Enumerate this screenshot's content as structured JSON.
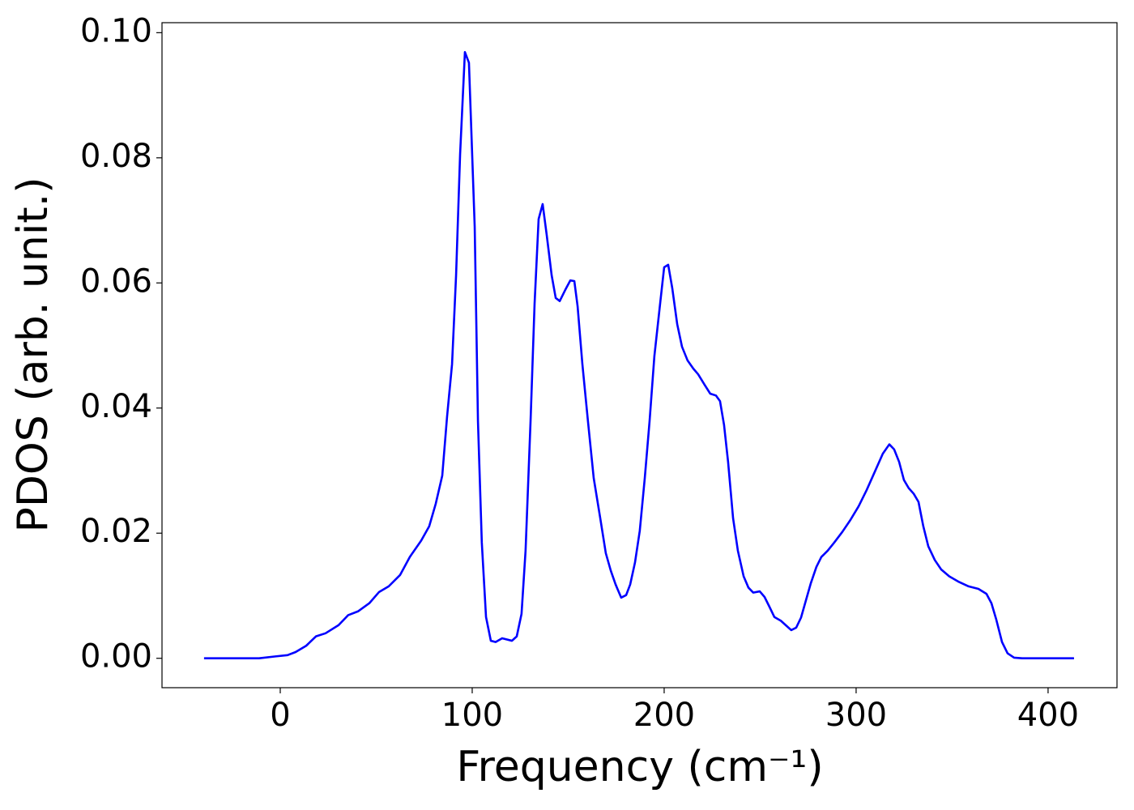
{
  "chart_data": {
    "type": "line",
    "xlabel": "Frequency (cm⁻¹)",
    "ylabel": "PDOS (arb. unit.)",
    "xlim": [
      -61.6,
      435.9
    ],
    "ylim": [
      -0.0047,
      0.1016
    ],
    "xticks": [
      0,
      100,
      200,
      300,
      400
    ],
    "yticks": [
      {
        "value": 0,
        "label": "0.00"
      },
      {
        "value": 0.02,
        "label": "0.02"
      },
      {
        "value": 0.04,
        "label": "0.04"
      },
      {
        "value": 0.06,
        "label": "0.06"
      },
      {
        "value": 0.08,
        "label": "0.08"
      },
      {
        "value": 0.1,
        "label": "0.10"
      }
    ],
    "grid": false,
    "series": [
      {
        "color": "#0000ff",
        "x": [
          -39.7,
          -11,
          -2.5,
          3.8,
          8,
          13.5,
          18.6,
          23.6,
          30.4,
          35.4,
          40.5,
          46.4,
          51.5,
          56.5,
          62.4,
          67.5,
          73.4,
          77.6,
          81,
          84.4,
          86.9,
          89.5,
          91.6,
          93.7,
          96.2,
          98.3,
          101.3,
          103,
          105,
          107.2,
          109.7,
          112.2,
          115.6,
          120.7,
          123.2,
          125.7,
          127.8,
          130.4,
          132.5,
          134.6,
          136.7,
          138.8,
          141.4,
          143.5,
          145.6,
          148.5,
          151.1,
          153.2,
          154.9,
          157.4,
          160.3,
          163.3,
          166.7,
          169.6,
          172.2,
          174.7,
          177.6,
          180.2,
          182.3,
          184.8,
          187.3,
          189.9,
          192.4,
          194.9,
          197.9,
          200,
          202.1,
          204.2,
          206.8,
          209.3,
          212.2,
          215.2,
          217.7,
          221.1,
          224,
          227,
          229.1,
          231.2,
          233.3,
          235.9,
          238.4,
          241.4,
          243.9,
          246.4,
          249.8,
          252.3,
          254.9,
          257.4,
          260.8,
          263.3,
          266.2,
          268.8,
          271.3,
          273.8,
          276.4,
          279.3,
          281.9,
          285.2,
          288.6,
          292.8,
          297,
          301.3,
          305.5,
          309.7,
          313.9,
          317.3,
          319.8,
          322.4,
          324.9,
          327.4,
          330,
          332.5,
          335,
          337.6,
          341,
          344.3,
          348.5,
          353.6,
          358.6,
          363.7,
          367.9,
          370.5,
          373,
          376,
          378.9,
          382.3,
          386.5,
          413.5
        ],
        "values": [
          0,
          0,
          0.0003,
          0.0005,
          0.001,
          0.002,
          0.0035,
          0.004,
          0.0053,
          0.0069,
          0.0075,
          0.0088,
          0.0106,
          0.0115,
          0.0133,
          0.0162,
          0.0188,
          0.0211,
          0.0247,
          0.0292,
          0.0386,
          0.047,
          0.0612,
          0.0806,
          0.0969,
          0.0952,
          0.069,
          0.0379,
          0.0185,
          0.0066,
          0.0028,
          0.0026,
          0.0032,
          0.0028,
          0.0035,
          0.0071,
          0.0172,
          0.0379,
          0.0567,
          0.0702,
          0.0726,
          0.0677,
          0.0612,
          0.0576,
          0.0571,
          0.0589,
          0.0604,
          0.0603,
          0.0563,
          0.047,
          0.0379,
          0.0288,
          0.0224,
          0.0168,
          0.014,
          0.0118,
          0.0097,
          0.0101,
          0.0118,
          0.0153,
          0.0204,
          0.0288,
          0.0379,
          0.0483,
          0.0567,
          0.0625,
          0.0629,
          0.0592,
          0.0534,
          0.0498,
          0.0476,
          0.0463,
          0.0454,
          0.0437,
          0.0423,
          0.042,
          0.0411,
          0.0373,
          0.0314,
          0.0224,
          0.0172,
          0.0131,
          0.0113,
          0.0105,
          0.0107,
          0.0098,
          0.0082,
          0.0066,
          0.006,
          0.0053,
          0.0045,
          0.0049,
          0.0065,
          0.0092,
          0.012,
          0.0146,
          0.0162,
          0.0172,
          0.0185,
          0.0202,
          0.0221,
          0.0243,
          0.0269,
          0.0298,
          0.0327,
          0.0342,
          0.0334,
          0.0314,
          0.0285,
          0.0272,
          0.0263,
          0.025,
          0.0211,
          0.0179,
          0.0157,
          0.0142,
          0.0131,
          0.0122,
          0.0115,
          0.0111,
          0.0103,
          0.0088,
          0.0062,
          0.0026,
          0.0008,
          0.0001,
          0,
          0
        ]
      }
    ]
  }
}
